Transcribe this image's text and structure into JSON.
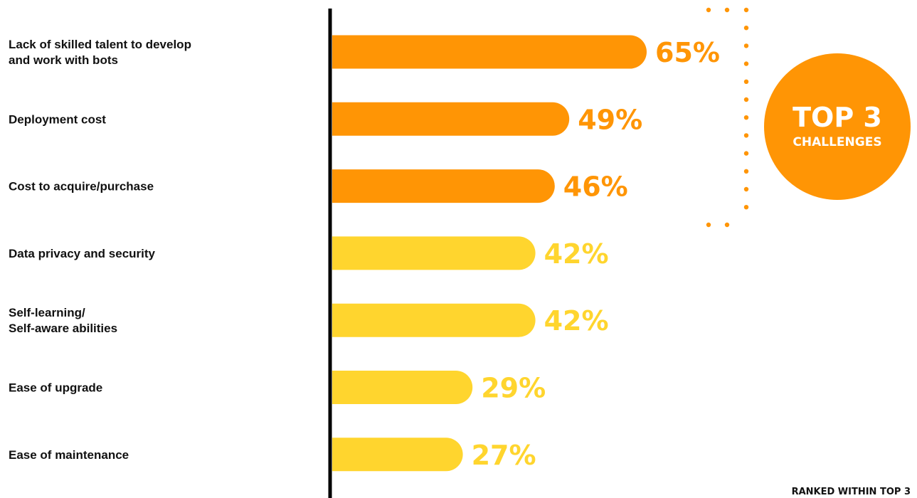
{
  "chart_data": {
    "type": "bar",
    "orientation": "horizontal",
    "categories": [
      [
        "Lack of skilled talent to develop",
        "and work with bots"
      ],
      [
        "Deployment cost"
      ],
      [
        "Cost to acquire/purchase"
      ],
      [
        "Data privacy and security"
      ],
      [
        "Self-learning/",
        "Self-aware abilities"
      ],
      [
        "Ease of upgrade"
      ],
      [
        "Ease of maintenance"
      ]
    ],
    "values": [
      65,
      49,
      46,
      42,
      42,
      29,
      27
    ],
    "value_labels": [
      "65%",
      "49%",
      "46%",
      "42%",
      "42%",
      "29%",
      "27%"
    ],
    "highlighted_top_n": 3,
    "xlim": [
      0,
      100
    ],
    "grid": false,
    "legend": "none"
  },
  "annotation": {
    "badge_line1": "TOP 3",
    "badge_line2": "CHALLENGES",
    "footnote": "RANKED WITHIN TOP 3"
  },
  "colors": {
    "top3": "#FF9505",
    "other": "#FFD52E",
    "axis": "#000000",
    "text": "#111111",
    "badge": "#FF9505"
  }
}
